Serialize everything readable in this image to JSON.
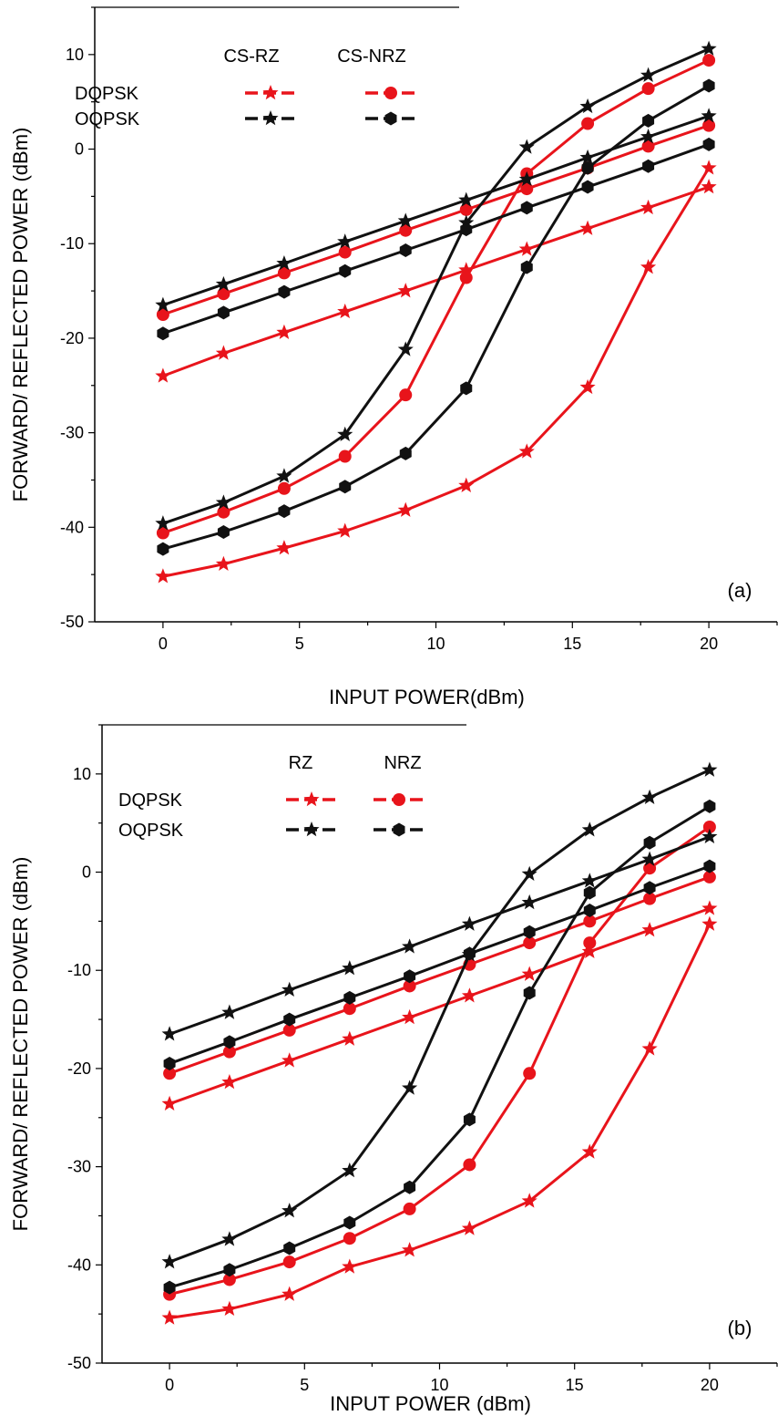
{
  "chart_data": [
    {
      "type": "line",
      "panel_label": "(a)",
      "xlabel": "INPUT POWER(dBm)",
      "ylabel": "FORWARD/ REFLECTED POWER (dBm)",
      "xlim": [
        -2.5,
        22.5
      ],
      "ylim": [
        -50,
        15
      ],
      "xticks": [
        0,
        5,
        10,
        15,
        20
      ],
      "yticks": [
        -50,
        -40,
        -30,
        -20,
        -10,
        0,
        10
      ],
      "x": [
        0,
        2.22,
        4.44,
        6.67,
        8.89,
        11.11,
        13.33,
        15.56,
        17.78,
        20
      ],
      "legend": {
        "col_headers": [
          "CS-RZ",
          "CS-NRZ"
        ],
        "row_headers": [
          "DQPSK",
          "OQPSK"
        ],
        "placement": "top-left"
      },
      "series": [
        {
          "color": "#e8141b",
          "marker": "star",
          "values": [
            -24.0,
            -21.6,
            -19.4,
            -17.2,
            -15.0,
            -12.8,
            -10.6,
            -8.4,
            -6.2,
            -4.0
          ]
        },
        {
          "color": "#e8141b",
          "marker": "star",
          "values": [
            -45.2,
            -43.9,
            -42.2,
            -40.4,
            -38.2,
            -35.6,
            -32.0,
            -25.2,
            -12.5,
            -2.0
          ]
        },
        {
          "color": "#e8141b",
          "marker": "circle",
          "values": [
            -17.5,
            -15.3,
            -13.1,
            -10.9,
            -8.6,
            -6.4,
            -4.2,
            -2.0,
            0.3,
            2.5
          ]
        },
        {
          "color": "#e8141b",
          "marker": "circle",
          "values": [
            -40.6,
            -38.4,
            -35.9,
            -32.5,
            -26.0,
            -13.6,
            -2.6,
            2.7,
            6.4,
            9.4
          ]
        },
        {
          "color": "#111111",
          "marker": "star",
          "values": [
            -16.5,
            -14.3,
            -12.1,
            -9.8,
            -7.6,
            -5.4,
            -3.2,
            -0.9,
            1.3,
            3.5
          ]
        },
        {
          "color": "#111111",
          "marker": "star",
          "values": [
            -39.6,
            -37.4,
            -34.6,
            -30.2,
            -21.2,
            -7.8,
            0.2,
            4.5,
            7.8,
            10.6
          ]
        },
        {
          "color": "#111111",
          "marker": "hexagon",
          "values": [
            -19.5,
            -17.3,
            -15.1,
            -12.9,
            -10.7,
            -8.5,
            -6.2,
            -4.0,
            -1.8,
            0.5
          ]
        },
        {
          "color": "#111111",
          "marker": "hexagon",
          "values": [
            -42.3,
            -40.5,
            -38.3,
            -35.7,
            -32.2,
            -25.3,
            -12.5,
            -2.0,
            3.0,
            6.7
          ]
        }
      ]
    },
    {
      "type": "line",
      "panel_label": "(b)",
      "xlabel": "INPUT POWER (dBm)",
      "ylabel": "FORWARD/ REFLECTED POWER (dBm)",
      "xlim": [
        -2.5,
        22.5
      ],
      "ylim": [
        -50,
        15
      ],
      "xticks": [
        0,
        5,
        10,
        15,
        20
      ],
      "yticks": [
        -50,
        -40,
        -30,
        -20,
        -10,
        0,
        10
      ],
      "x": [
        0,
        2.22,
        4.44,
        6.67,
        8.89,
        11.11,
        13.33,
        15.56,
        17.78,
        20
      ],
      "legend": {
        "col_headers": [
          "RZ",
          "NRZ"
        ],
        "row_headers": [
          "DQPSK",
          "OQPSK"
        ],
        "placement": "top-left"
      },
      "series": [
        {
          "color": "#e8141b",
          "marker": "star",
          "values": [
            -23.6,
            -21.4,
            -19.2,
            -17.0,
            -14.8,
            -12.6,
            -10.4,
            -8.1,
            -5.9,
            -3.7
          ]
        },
        {
          "color": "#e8141b",
          "marker": "star",
          "values": [
            -45.4,
            -44.5,
            -43.0,
            -40.2,
            -38.5,
            -36.3,
            -33.5,
            -28.5,
            -18.0,
            -5.3
          ]
        },
        {
          "color": "#e8141b",
          "marker": "circle",
          "values": [
            -20.5,
            -18.3,
            -16.1,
            -13.9,
            -11.6,
            -9.4,
            -7.2,
            -5.0,
            -2.7,
            -0.5
          ]
        },
        {
          "color": "#e8141b",
          "marker": "circle",
          "values": [
            -43.0,
            -41.5,
            -39.7,
            -37.3,
            -34.3,
            -29.8,
            -20.5,
            -7.2,
            0.4,
            4.6
          ]
        },
        {
          "color": "#111111",
          "marker": "star",
          "values": [
            -16.5,
            -14.3,
            -12.0,
            -9.8,
            -7.6,
            -5.3,
            -3.1,
            -0.9,
            1.3,
            3.6
          ]
        },
        {
          "color": "#111111",
          "marker": "star",
          "values": [
            -39.7,
            -37.4,
            -34.5,
            -30.4,
            -22.0,
            -8.4,
            -0.2,
            4.3,
            7.6,
            10.4
          ]
        },
        {
          "color": "#111111",
          "marker": "hexagon",
          "values": [
            -19.5,
            -17.3,
            -15.0,
            -12.8,
            -10.6,
            -8.3,
            -6.1,
            -3.9,
            -1.6,
            0.6
          ]
        },
        {
          "color": "#111111",
          "marker": "hexagon",
          "values": [
            -42.3,
            -40.5,
            -38.3,
            -35.7,
            -32.1,
            -25.2,
            -12.3,
            -2.1,
            3.0,
            6.7
          ]
        }
      ]
    }
  ]
}
